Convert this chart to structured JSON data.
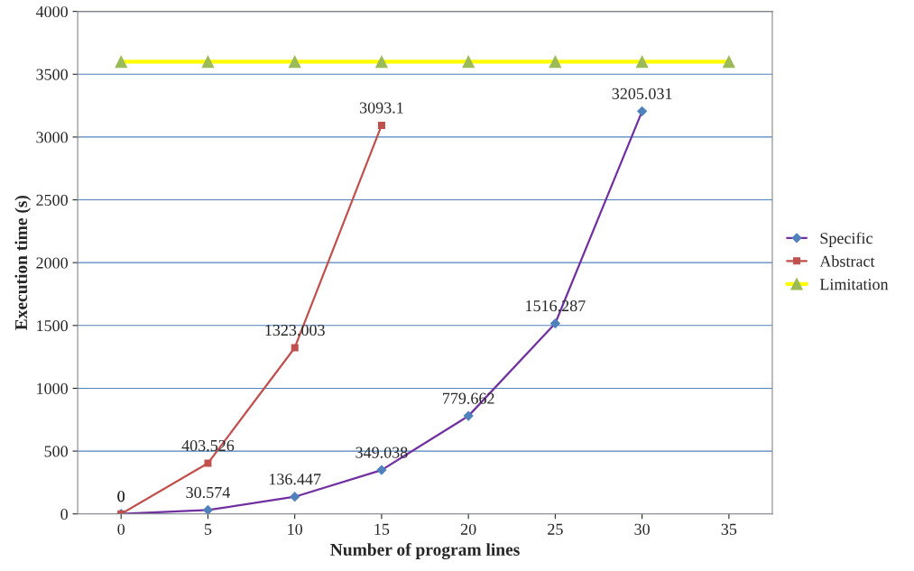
{
  "chart_data": {
    "type": "line",
    "xlabel": "Number of program lines",
    "ylabel": "Execution time (s)",
    "categories": [
      "0",
      "5",
      "10",
      "15",
      "20",
      "25",
      "30",
      "35"
    ],
    "series": [
      {
        "name": "Specific",
        "color": "#7030a0",
        "marker": "diamond",
        "values": [
          0,
          30.574,
          136.447,
          349.038,
          779.662,
          1516.287,
          3205.031,
          null
        ],
        "value_labels": [
          "0",
          "30.574",
          "136.447",
          "349.038",
          "779.662",
          "1516.287",
          "3205.031",
          null
        ]
      },
      {
        "name": "Abstract",
        "color": "#c0504d",
        "marker": "square",
        "values": [
          0,
          403.526,
          1323.003,
          3093.1,
          null,
          null,
          null,
          null
        ],
        "value_labels": [
          "0",
          "403.526",
          "1323.003",
          "3093.1",
          null,
          null,
          null,
          null
        ]
      },
      {
        "name": "Limitation",
        "color": "#ffff00",
        "marker": "triangle",
        "values": [
          3600,
          3600,
          3600,
          3600,
          3600,
          3600,
          3600,
          3600
        ]
      }
    ],
    "ylim": [
      0,
      4000
    ],
    "yticks": [
      0,
      500,
      1000,
      1500,
      2000,
      2500,
      3000,
      3500,
      4000
    ],
    "grid": "y",
    "legend": "right"
  }
}
